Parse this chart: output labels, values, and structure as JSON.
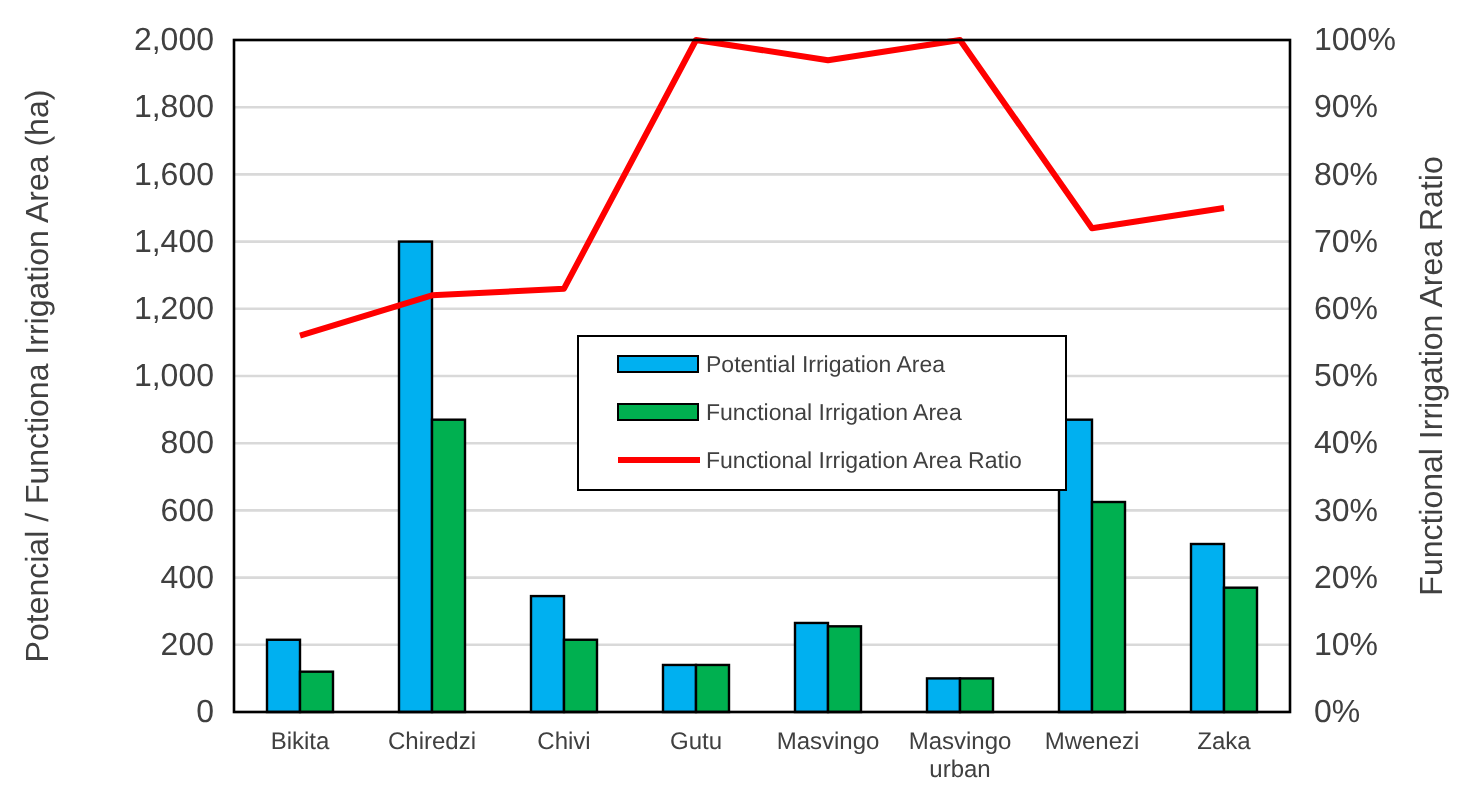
{
  "chart_data": {
    "type": "bar",
    "ylabel": "Potencial / Functiona Irrigation Area (ha)",
    "y2label": "Functional Irrigation Area Ratio",
    "categories": [
      "Bikita",
      "Chiredzi",
      "Chivi",
      "Gutu",
      "Masvingo",
      "Masvingo urban",
      "Mwenezi",
      "Zaka"
    ],
    "series": [
      {
        "name": "Potential Irrigation Area",
        "color": "#00b0f0",
        "values": [
          215,
          1400,
          345,
          140,
          265,
          100,
          870,
          500
        ]
      },
      {
        "name": "Functional Irrigation Area",
        "color": "#00b050",
        "values": [
          120,
          870,
          215,
          140,
          255,
          100,
          625,
          370
        ]
      },
      {
        "name": "Functional Irrigation Area Ratio",
        "type": "line",
        "axis": "y2",
        "color": "#ff0000",
        "values": [
          56,
          62,
          63,
          100,
          97,
          100,
          72,
          75
        ]
      }
    ],
    "ylim": [
      0,
      2000
    ],
    "yticks": [
      {
        "value": 0,
        "label": "0"
      },
      {
        "value": 200,
        "label": "200"
      },
      {
        "value": 400,
        "label": "400"
      },
      {
        "value": 600,
        "label": "600"
      },
      {
        "value": 800,
        "label": "800"
      },
      {
        "value": 1000,
        "label": "1,000"
      },
      {
        "value": 1200,
        "label": "1,200"
      },
      {
        "value": 1400,
        "label": "1,400"
      },
      {
        "value": 1600,
        "label": "1,600"
      },
      {
        "value": 1800,
        "label": "1,800"
      },
      {
        "value": 2000,
        "label": "2,000"
      }
    ],
    "y2lim": [
      0,
      100
    ],
    "y2ticks": [
      {
        "value": 0,
        "label": "0%"
      },
      {
        "value": 10,
        "label": "10%"
      },
      {
        "value": 20,
        "label": "20%"
      },
      {
        "value": 30,
        "label": "30%"
      },
      {
        "value": 40,
        "label": "40%"
      },
      {
        "value": 50,
        "label": "50%"
      },
      {
        "value": 60,
        "label": "60%"
      },
      {
        "value": 70,
        "label": "70%"
      },
      {
        "value": 80,
        "label": "80%"
      },
      {
        "value": 90,
        "label": "90%"
      },
      {
        "value": 100,
        "label": "100%"
      }
    ],
    "grid": "y",
    "legend": "center",
    "marker": "none",
    "line_style": "solid"
  }
}
